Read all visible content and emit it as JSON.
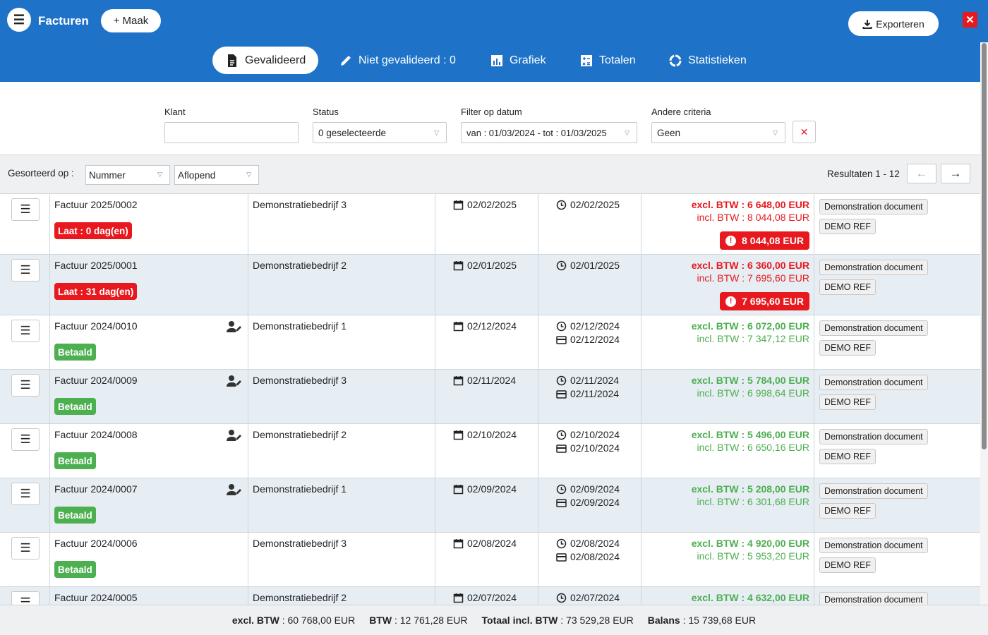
{
  "header": {
    "title": "Facturen",
    "make_label": "Maak",
    "export_label": "Exporteren",
    "close_symbol": "✕",
    "brand_color": "#1e73c8"
  },
  "tabs": [
    {
      "label": "Gevalideerd",
      "icon": "document-icon",
      "active": true
    },
    {
      "label": "Niet gevalideerd : 0",
      "icon": "pencil-icon",
      "active": false
    },
    {
      "label": "Grafiek",
      "icon": "bar-chart-icon",
      "active": false
    },
    {
      "label": "Totalen",
      "icon": "calculator-icon",
      "active": false
    },
    {
      "label": "Statistieken",
      "icon": "donut-chart-icon",
      "active": false
    }
  ],
  "filters": {
    "client_label": "Klant",
    "client_value": "",
    "status_label": "Status",
    "status_value": "0 geselecteerde",
    "date_label": "Filter op datum",
    "date_value": "van : 01/03/2024 - tot : 01/03/2025",
    "other_label": "Andere criteria",
    "other_value": "Geen",
    "clear_symbol": "✕"
  },
  "sortbar": {
    "label": "Gesorteerd op :",
    "field": "Nummer",
    "order": "Aflopend",
    "results": "Resultaten 1 - 12",
    "prev_symbol": "←",
    "next_symbol": "→"
  },
  "rows": [
    {
      "number": "Factuur 2025/0002",
      "badge": "Laat : 0 dag(en)",
      "badge_type": "late",
      "client": "Demonstratiebedrijf 3",
      "date": "02/02/2025",
      "due": "02/02/2025",
      "paid": "",
      "excl": "excl. BTW : 6 648,00 EUR",
      "incl": "incl. BTW : 8 044,08 EUR",
      "due_amount": "8 044,08 EUR",
      "tag1": "Demonstration document",
      "tag2": "DEMO REF",
      "editor": false
    },
    {
      "number": "Factuur 2025/0001",
      "badge": "Laat : 31 dag(en)",
      "badge_type": "late",
      "client": "Demonstratiebedrijf 2",
      "date": "02/01/2025",
      "due": "02/01/2025",
      "paid": "",
      "excl": "excl. BTW : 6 360,00 EUR",
      "incl": "incl. BTW : 7 695,60 EUR",
      "due_amount": "7 695,60 EUR",
      "tag1": "Demonstration document",
      "tag2": "DEMO REF",
      "editor": false
    },
    {
      "number": "Factuur 2024/0010",
      "badge": "Betaald",
      "badge_type": "paid",
      "client": "Demonstratiebedrijf 1",
      "date": "02/12/2024",
      "due": "02/12/2024",
      "paid": "02/12/2024",
      "excl": "excl. BTW : 6 072,00 EUR",
      "incl": "incl. BTW : 7 347,12 EUR",
      "due_amount": "",
      "tag1": "Demonstration document",
      "tag2": "DEMO REF",
      "editor": true
    },
    {
      "number": "Factuur 2024/0009",
      "badge": "Betaald",
      "badge_type": "paid",
      "client": "Demonstratiebedrijf 3",
      "date": "02/11/2024",
      "due": "02/11/2024",
      "paid": "02/11/2024",
      "excl": "excl. BTW : 5 784,00 EUR",
      "incl": "incl. BTW : 6 998,64 EUR",
      "due_amount": "",
      "tag1": "Demonstration document",
      "tag2": "DEMO REF",
      "editor": true
    },
    {
      "number": "Factuur 2024/0008",
      "badge": "Betaald",
      "badge_type": "paid",
      "client": "Demonstratiebedrijf 2",
      "date": "02/10/2024",
      "due": "02/10/2024",
      "paid": "02/10/2024",
      "excl": "excl. BTW : 5 496,00 EUR",
      "incl": "incl. BTW : 6 650,16 EUR",
      "due_amount": "",
      "tag1": "Demonstration document",
      "tag2": "DEMO REF",
      "editor": true
    },
    {
      "number": "Factuur 2024/0007",
      "badge": "Betaald",
      "badge_type": "paid",
      "client": "Demonstratiebedrijf 1",
      "date": "02/09/2024",
      "due": "02/09/2024",
      "paid": "02/09/2024",
      "excl": "excl. BTW : 5 208,00 EUR",
      "incl": "incl. BTW : 6 301,68 EUR",
      "due_amount": "",
      "tag1": "Demonstration document",
      "tag2": "DEMO REF",
      "editor": true
    },
    {
      "number": "Factuur 2024/0006",
      "badge": "Betaald",
      "badge_type": "paid",
      "client": "Demonstratiebedrijf 3",
      "date": "02/08/2024",
      "due": "02/08/2024",
      "paid": "02/08/2024",
      "excl": "excl. BTW : 4 920,00 EUR",
      "incl": "incl. BTW : 5 953,20 EUR",
      "due_amount": "",
      "tag1": "Demonstration document",
      "tag2": "DEMO REF",
      "editor": false
    },
    {
      "number": "Factuur 2024/0005",
      "badge": "",
      "badge_type": "paid",
      "client": "Demonstratiebedrijf 2",
      "date": "02/07/2024",
      "due": "02/07/2024",
      "paid": "",
      "excl": "excl. BTW : 4 632,00 EUR",
      "incl": "",
      "due_amount": "",
      "tag1": "Demonstration document",
      "tag2": "",
      "editor": false
    }
  ],
  "footer": {
    "excl_label": "excl. BTW",
    "excl_value": ": 60 768,00 EUR",
    "btw_label": "BTW",
    "btw_value": ": 12 761,28 EUR",
    "total_label": "Totaal incl. BTW",
    "total_value": ": 73 529,28 EUR",
    "balance_label": "Balans",
    "balance_value": ": 15 739,68 EUR"
  }
}
